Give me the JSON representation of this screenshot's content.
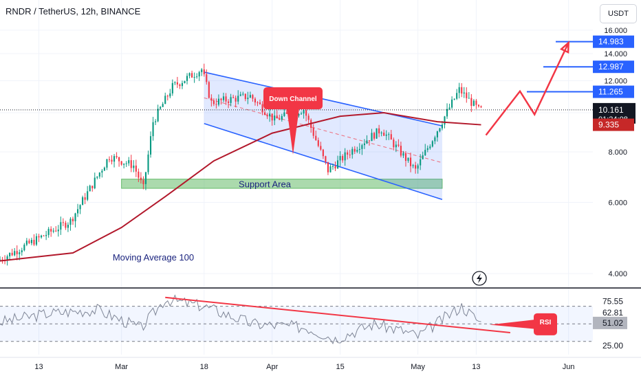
{
  "header": {
    "title": "RNDR / TetherUS, 12h, BINANCE"
  },
  "toolbar": {
    "currency": "USDT"
  },
  "colors": {
    "up": "#089981",
    "down": "#f23645",
    "ma": "#b2182b",
    "channel": "#2962ff",
    "support_fill": "#66bb6a",
    "arrow": "#f23645",
    "level_line": "#2962ff",
    "rsi_line": "#7e8596",
    "trend": "#f23645",
    "bg": "#ffffff",
    "grid": "#f0f3fa"
  },
  "chart_data": [
    {
      "type": "candlestick",
      "scale": "log",
      "ylim": [
        3.7,
        19.0
      ],
      "y_ticks": [
        "16.000",
        "14.000",
        "12.000",
        "10.000",
        "8.000",
        "6.000",
        "4.000"
      ],
      "y_tick_values": [
        16,
        14,
        12,
        10,
        8,
        6,
        4
      ],
      "x_ticks": [
        "13",
        "Mar",
        "18",
        "Apr",
        "15",
        "May",
        "13",
        "Jun"
      ],
      "x_tick_dates": [
        "2024-02-13",
        "2024-03-01",
        "2024-03-18",
        "2024-04-01",
        "2024-04-15",
        "2024-05-01",
        "2024-05-13",
        "2024-06-01"
      ],
      "x_range": [
        "2024-02-05",
        "2024-06-06"
      ],
      "price_labels": {
        "current": "10.161",
        "countdown": "01:24:08",
        "ma_value": "9.335",
        "levels": [
          "14.983",
          "12.987",
          "11.265"
        ]
      },
      "levels": [
        14.983,
        12.987,
        11.265
      ],
      "current_price": 10.161,
      "ma_value": 9.335,
      "annotations": {
        "down_channel": "Down Channel",
        "support_area": "Support Area",
        "moving_average": "Moving Average 100"
      },
      "key_points": [
        {
          "date": "2024-02-05",
          "price": 4.3
        },
        {
          "date": "2024-02-20",
          "price": 5.4
        },
        {
          "date": "2024-02-28",
          "price": 7.8
        },
        {
          "date": "2024-03-04",
          "price": 7.4
        },
        {
          "date": "2024-03-06",
          "price": 6.5
        },
        {
          "date": "2024-03-08",
          "price": 9.5
        },
        {
          "date": "2024-03-12",
          "price": 11.6
        },
        {
          "date": "2024-03-18",
          "price": 12.8
        },
        {
          "date": "2024-03-20",
          "price": 10.6
        },
        {
          "date": "2024-03-28",
          "price": 11.0
        },
        {
          "date": "2024-04-02",
          "price": 9.6
        },
        {
          "date": "2024-04-08",
          "price": 10.2
        },
        {
          "date": "2024-04-13",
          "price": 7.2
        },
        {
          "date": "2024-04-18",
          "price": 8.1
        },
        {
          "date": "2024-04-24",
          "price": 9.1
        },
        {
          "date": "2024-05-01",
          "price": 7.2
        },
        {
          "date": "2024-05-06",
          "price": 9.3
        },
        {
          "date": "2024-05-10",
          "price": 11.4
        },
        {
          "date": "2024-05-14",
          "price": 10.16
        }
      ],
      "ma_points": [
        {
          "date": "2024-02-05",
          "price": 4.3
        },
        {
          "date": "2024-02-20",
          "price": 4.5
        },
        {
          "date": "2024-03-01",
          "price": 5.2
        },
        {
          "date": "2024-03-10",
          "price": 6.2
        },
        {
          "date": "2024-03-20",
          "price": 7.6
        },
        {
          "date": "2024-04-01",
          "price": 8.9
        },
        {
          "date": "2024-04-15",
          "price": 9.8
        },
        {
          "date": "2024-04-24",
          "price": 10.0
        },
        {
          "date": "2024-05-05",
          "price": 9.5
        },
        {
          "date": "2024-05-14",
          "price": 9.335
        }
      ],
      "channel_upper": [
        {
          "date": "2024-03-18",
          "price": 12.6
        },
        {
          "date": "2024-04-24",
          "price": 10.0
        }
      ],
      "channel_lower": [
        {
          "date": "2024-03-18",
          "price": 9.4
        },
        {
          "date": "2024-05-06",
          "price": 6.1
        }
      ],
      "support_band": {
        "start": "2024-03-01",
        "end": "2024-05-06",
        "low": 6.5,
        "high": 6.85
      },
      "projection": [
        {
          "date": "2024-05-15",
          "price": 8.8
        },
        {
          "date": "2024-05-22",
          "price": 11.3
        },
        {
          "date": "2024-05-25",
          "price": 9.9
        },
        {
          "date": "2024-06-01",
          "price": 14.9
        }
      ]
    },
    {
      "type": "line",
      "title": "RSI",
      "ylim": [
        15,
        90
      ],
      "y_ticks": [
        "75.55",
        "62.81",
        "51.02",
        "25.00"
      ],
      "y_tick_values": [
        75.55,
        62.81,
        51.02,
        25.0
      ],
      "current": 51.02,
      "label": "RSI",
      "key_points": [
        {
          "date": "2024-02-05",
          "value": 52
        },
        {
          "date": "2024-02-15",
          "value": 62
        },
        {
          "date": "2024-02-25",
          "value": 66
        },
        {
          "date": "2024-03-05",
          "value": 45
        },
        {
          "date": "2024-03-10",
          "value": 78
        },
        {
          "date": "2024-03-18",
          "value": 70
        },
        {
          "date": "2024-03-28",
          "value": 50
        },
        {
          "date": "2024-04-08",
          "value": 46
        },
        {
          "date": "2024-04-14",
          "value": 33
        },
        {
          "date": "2024-04-22",
          "value": 50
        },
        {
          "date": "2024-04-28",
          "value": 42
        },
        {
          "date": "2024-05-01",
          "value": 36
        },
        {
          "date": "2024-05-10",
          "value": 70
        },
        {
          "date": "2024-05-14",
          "value": 51
        }
      ],
      "trendline": [
        {
          "date": "2024-03-10",
          "value": 80
        },
        {
          "date": "2024-05-20",
          "value": 40
        }
      ]
    }
  ]
}
